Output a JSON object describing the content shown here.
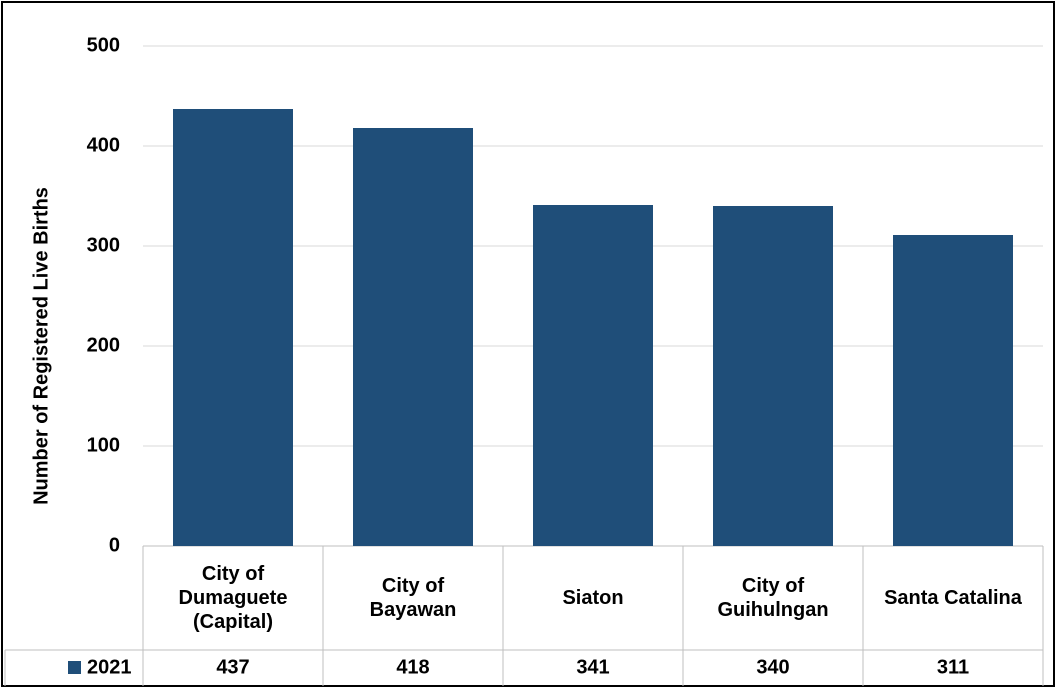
{
  "chart_data": {
    "type": "bar",
    "y_label": "Number of Registered Live Births",
    "categories": [
      "City of\nDumaguete\n(Capital)",
      "City of\nBayawan",
      "Siaton",
      "City of\nGuihulngan",
      "Santa Catalina"
    ],
    "series": [
      {
        "name": "2021",
        "color": "#1f4e79",
        "values": [
          437,
          418,
          341,
          340,
          311
        ]
      }
    ],
    "ylim": [
      0,
      500
    ],
    "yticks": [
      0,
      100,
      200,
      300,
      400,
      500
    ],
    "grid": true,
    "data_table": true
  }
}
